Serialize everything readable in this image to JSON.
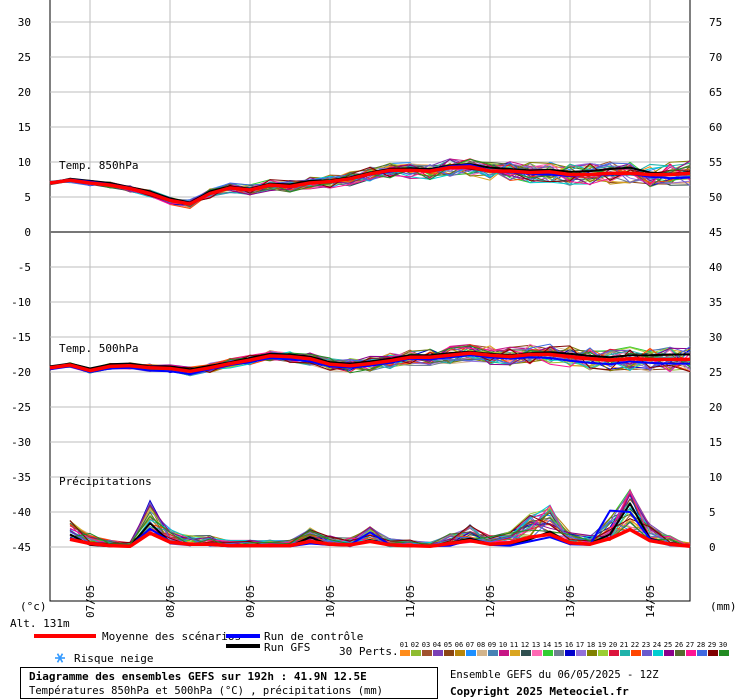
{
  "chart_data": {
    "type": "line",
    "dates": [
      "07/05",
      "08/05",
      "09/05",
      "10/05",
      "11/05",
      "12/05",
      "13/05",
      "14/05"
    ],
    "left_axis_ticks": [
      "30",
      "25",
      "20",
      "15",
      "10",
      "5",
      "0",
      "-5",
      "-10",
      "-15",
      "-20",
      "-25",
      "-30",
      "-35",
      "-40",
      "-45"
    ],
    "right_axis_ticks_top": [
      "75",
      "70",
      "65",
      "60",
      "55",
      "50"
    ],
    "right_axis_ticks_mid": [
      "45",
      "40",
      "35",
      "30",
      "25",
      "20",
      "15"
    ],
    "right_axis_ticks_precip": [
      "10",
      "5",
      "0"
    ],
    "left_unit": "(°c)",
    "right_unit": "(mm)",
    "altitude": "Alt. 131m",
    "panel_labels": {
      "t850": "Temp. 850hPa",
      "t500": "Temp. 500hPa",
      "precip": "Précipitations"
    },
    "x_start_hour": 0,
    "x_end_hour": 192,
    "date_hours": [
      12,
      36,
      60,
      84,
      108,
      132,
      156,
      180
    ],
    "series": [
      {
        "name": "Moyenne des scénarios",
        "panel": "t850",
        "color": "#ff0000",
        "x": [
          0,
          6,
          12,
          18,
          24,
          30,
          36,
          42,
          48,
          54,
          60,
          66,
          72,
          78,
          84,
          90,
          96,
          102,
          108,
          114,
          120,
          126,
          132,
          138,
          144,
          150,
          156,
          162,
          168,
          174,
          180,
          186,
          192
        ],
        "values": [
          7,
          7.4,
          7,
          6.7,
          6.2,
          5.5,
          4.5,
          4,
          5.5,
          6.3,
          6,
          6.7,
          6.5,
          7,
          7.2,
          7.6,
          8.3,
          8.8,
          8.8,
          8.7,
          9.2,
          9.3,
          8.7,
          8.7,
          8.5,
          8.6,
          8.2,
          8.2,
          8.4,
          8.4,
          8.2,
          8.2,
          8.4
        ]
      },
      {
        "name": "Run de contrôle",
        "panel": "t850",
        "color": "#0000ff",
        "x": [
          0,
          6,
          12,
          18,
          24,
          30,
          36,
          42,
          48,
          54,
          60,
          66,
          72,
          78,
          84,
          90,
          96,
          102,
          108,
          114,
          120,
          126,
          132,
          138,
          144,
          150,
          156,
          162,
          168,
          174,
          180,
          186,
          192
        ],
        "values": [
          7.1,
          7.5,
          7.2,
          6.8,
          6.3,
          5.6,
          4.6,
          4.1,
          5.6,
          6.2,
          5.9,
          6.6,
          6.4,
          7,
          7.3,
          7.5,
          8.2,
          8.6,
          8.9,
          8.8,
          9.4,
          9.6,
          8.8,
          8.5,
          8.3,
          8.2,
          8,
          8.1,
          8.2,
          8.3,
          7.9,
          7.7,
          7.8
        ]
      },
      {
        "name": "Run GFS",
        "panel": "t850",
        "color": "#000000",
        "x": [
          0,
          6,
          12,
          18,
          24,
          30,
          36,
          42,
          48,
          54,
          60,
          66,
          72,
          78,
          84,
          90,
          96,
          102,
          108,
          114,
          120,
          126,
          132,
          138,
          144,
          150,
          156,
          162,
          168,
          174,
          180,
          186,
          192
        ],
        "values": [
          7,
          7.6,
          7.3,
          7,
          6.4,
          5.8,
          4.8,
          4.2,
          5.8,
          6.5,
          6.2,
          6.9,
          6.8,
          7.3,
          7.4,
          7.8,
          8.5,
          9,
          9.1,
          9,
          9.5,
          9.7,
          9.2,
          9,
          8.8,
          8.9,
          8.6,
          8.7,
          9,
          9.2,
          8.5,
          8.3,
          8.6
        ]
      },
      {
        "name": "Moyenne des scénarios",
        "panel": "t500",
        "color": "#ff0000",
        "x": [
          0,
          6,
          12,
          18,
          24,
          30,
          36,
          42,
          48,
          54,
          60,
          66,
          72,
          78,
          84,
          90,
          96,
          102,
          108,
          114,
          120,
          126,
          132,
          138,
          144,
          150,
          156,
          162,
          168,
          174,
          180,
          186,
          192
        ],
        "values": [
          -19.4,
          -19,
          -19.8,
          -19.2,
          -19.1,
          -19.4,
          -19.5,
          -19.9,
          -19.4,
          -18.8,
          -18.3,
          -17.7,
          -17.8,
          -18.1,
          -18.9,
          -19.1,
          -18.8,
          -18.4,
          -17.9,
          -17.9,
          -17.6,
          -17.3,
          -17.6,
          -17.8,
          -17.5,
          -17.5,
          -17.8,
          -18.1,
          -18.3,
          -18.1,
          -18.2,
          -18.2,
          -18.2
        ]
      },
      {
        "name": "Run de contrôle",
        "panel": "t500",
        "color": "#0000ff",
        "x": [
          0,
          6,
          12,
          18,
          24,
          30,
          36,
          42,
          48,
          54,
          60,
          66,
          72,
          78,
          84,
          90,
          96,
          102,
          108,
          114,
          120,
          126,
          132,
          138,
          144,
          150,
          156,
          162,
          168,
          174,
          180,
          186,
          192
        ],
        "values": [
          -19.6,
          -19.2,
          -20,
          -19.5,
          -19.4,
          -19.8,
          -19.9,
          -20.3,
          -19.6,
          -19,
          -18.6,
          -18,
          -18.2,
          -18.5,
          -19.2,
          -19.4,
          -19.1,
          -18.7,
          -18.1,
          -18.2,
          -17.9,
          -17.6,
          -17.9,
          -18.1,
          -17.9,
          -18,
          -18.4,
          -18.7,
          -18.9,
          -18.5,
          -18.7,
          -18.8,
          -18.8
        ]
      },
      {
        "name": "Run GFS",
        "panel": "t500",
        "color": "#000000",
        "x": [
          0,
          6,
          12,
          18,
          24,
          30,
          36,
          42,
          48,
          54,
          60,
          66,
          72,
          78,
          84,
          90,
          96,
          102,
          108,
          114,
          120,
          126,
          132,
          138,
          144,
          150,
          156,
          162,
          168,
          174,
          180,
          186,
          192
        ],
        "values": [
          -19.2,
          -18.8,
          -19.5,
          -18.9,
          -18.8,
          -19.2,
          -19.2,
          -19.6,
          -19.1,
          -18.6,
          -18,
          -17.4,
          -17.5,
          -17.8,
          -18.6,
          -18.8,
          -18.5,
          -18.1,
          -17.6,
          -17.6,
          -17.3,
          -17.1,
          -17.4,
          -17.6,
          -17.3,
          -17.2,
          -17.4,
          -17.7,
          -17.9,
          -17.6,
          -17.6,
          -17.5,
          -17.5
        ]
      },
      {
        "name": "Moyenne des scénarios",
        "panel": "precip",
        "color": "#ff0000",
        "x": [
          6,
          12,
          18,
          24,
          30,
          36,
          42,
          48,
          54,
          60,
          66,
          72,
          78,
          84,
          90,
          96,
          102,
          108,
          114,
          120,
          126,
          132,
          138,
          144,
          150,
          156,
          162,
          168,
          174,
          180,
          186,
          192
        ],
        "values": [
          1.1,
          0.5,
          0.2,
          0.1,
          2,
          0.7,
          0.4,
          0.4,
          0.2,
          0.2,
          0.2,
          0.2,
          0.8,
          0.4,
          0.3,
          0.8,
          0.3,
          0.2,
          0.1,
          0.5,
          0.9,
          0.4,
          0.6,
          1.4,
          1.8,
          0.6,
          0.4,
          1.2,
          2.5,
          0.9,
          0.4,
          0.1
        ]
      },
      {
        "name": "Run de contrôle",
        "panel": "precip",
        "color": "#0000ff",
        "x": [
          6,
          12,
          18,
          24,
          30,
          36,
          42,
          48,
          54,
          60,
          66,
          72,
          78,
          84,
          90,
          96,
          102,
          108,
          114,
          120,
          126,
          132,
          138,
          144,
          150,
          156,
          162,
          168,
          174,
          180,
          186,
          192
        ],
        "values": [
          1.3,
          0.4,
          0.1,
          0.1,
          2.6,
          0.8,
          0.4,
          0.3,
          0.1,
          0.2,
          0.1,
          0.1,
          0.5,
          0.3,
          0.3,
          2.1,
          0.3,
          0.1,
          0.1,
          0.2,
          1,
          0.3,
          0.2,
          0.8,
          1.4,
          0.4,
          0.3,
          5.2,
          5,
          1.1,
          0.4,
          0.1
        ]
      },
      {
        "name": "Run GFS",
        "panel": "precip",
        "color": "#000000",
        "x": [
          6,
          12,
          18,
          24,
          30,
          36,
          42,
          48,
          54,
          60,
          66,
          72,
          78,
          84,
          90,
          96,
          102,
          108,
          114,
          120,
          126,
          132,
          138,
          144,
          150,
          156,
          162,
          168,
          174,
          180,
          186,
          192
        ],
        "values": [
          1.8,
          0.3,
          0.1,
          0.1,
          3.4,
          0.7,
          0.3,
          0.3,
          0.1,
          0.1,
          0.1,
          0.1,
          1.4,
          0.3,
          0.2,
          1,
          0.3,
          0.1,
          0.1,
          0.6,
          1.2,
          0.4,
          0.3,
          1.1,
          2.2,
          0.5,
          0.5,
          1.8,
          6.2,
          1.2,
          0.4,
          0.1
        ]
      }
    ],
    "legend": {
      "mean": "Moyenne des scénarios",
      "control": "Run de contrôle",
      "gfs": "Run GFS",
      "snow": "Risque neige",
      "perts": "30 Perts.",
      "pert_labels": [
        "01",
        "02",
        "03",
        "04",
        "05",
        "06",
        "07",
        "08",
        "09",
        "10",
        "11",
        "12",
        "13",
        "14",
        "15",
        "16",
        "17",
        "18",
        "19",
        "20",
        "21",
        "22",
        "23",
        "24",
        "25",
        "26",
        "27",
        "28",
        "29",
        "30"
      ],
      "pert_colors": [
        "#ff8c1a",
        "#8fbc30",
        "#a0522d",
        "#7b3fb5",
        "#8b4513",
        "#b8860b",
        "#1e90ff",
        "#d2b48c",
        "#4682b4",
        "#c71585",
        "#daa520",
        "#2f4f4f",
        "#ff69b4",
        "#32cd32",
        "#708090",
        "#0000cd",
        "#9370db",
        "#808000",
        "#9acd32",
        "#dc143c",
        "#20b2aa",
        "#ff4500",
        "#6a5acd",
        "#00ced1",
        "#8b008b",
        "#556b2f",
        "#ff1493",
        "#4169e1",
        "#800000",
        "#228b22"
      ],
      "snow_color": "#3399ff"
    },
    "grid": true
  },
  "footer": {
    "title": "Diagramme des ensembles GEFS sur 192h : 41.9N 12.5E",
    "subtitle": "Températures 850hPa et 500hPa (°C) , précipitations (mm)",
    "ensemble_date": "Ensemble GEFS du 06/05/2025 - 12Z",
    "copyright": "Copyright 2025 Meteociel.fr"
  }
}
